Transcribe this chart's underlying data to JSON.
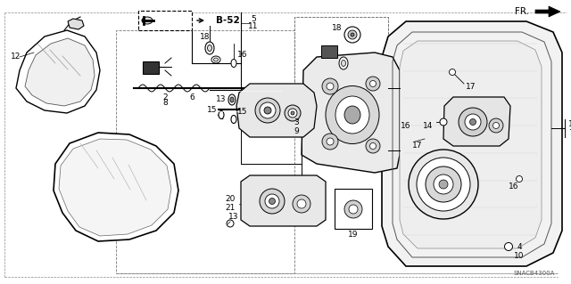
{
  "bg_color": "#ffffff",
  "line_color": "#000000",
  "watermark": "SNACB4300A",
  "label_fontsize": 6.5,
  "small_fontsize": 5.5,
  "fr_fontsize": 8
}
